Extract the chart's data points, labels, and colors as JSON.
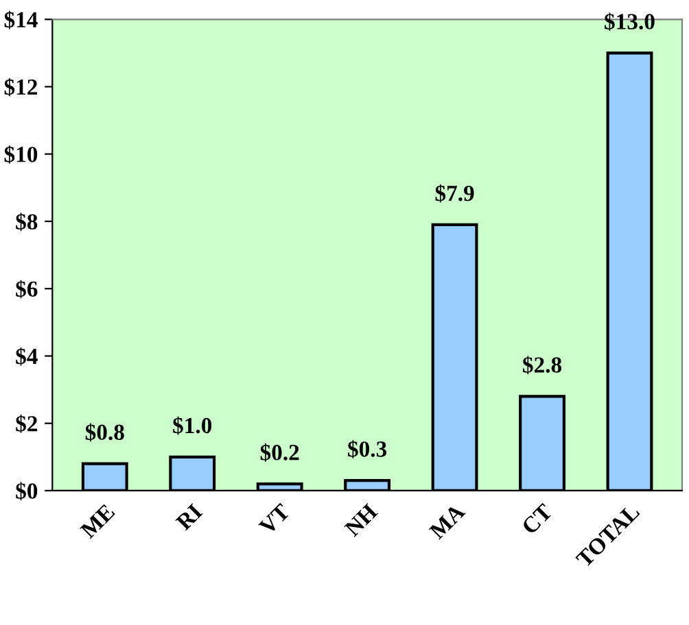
{
  "chart_data": {
    "type": "bar",
    "categories": [
      "ME",
      "RI",
      "VT",
      "NH",
      "MA",
      "CT",
      "TOTAL"
    ],
    "values": [
      0.8,
      1.0,
      0.2,
      0.3,
      7.9,
      2.8,
      13.0
    ],
    "value_labels": [
      "$0.8",
      "$1.0",
      "$0.2",
      "$0.3",
      "$7.9",
      "$2.8",
      "$13.0"
    ],
    "color": "#99ccff",
    "ylim": [
      0,
      14
    ],
    "yticks": [
      {
        "value": 0,
        "label": "$0"
      },
      {
        "value": 2,
        "label": "$2"
      },
      {
        "value": 4,
        "label": "$4"
      },
      {
        "value": 6,
        "label": "$6"
      },
      {
        "value": 8,
        "label": "$8"
      },
      {
        "value": 10,
        "label": "$10"
      },
      {
        "value": 12,
        "label": "$12"
      },
      {
        "value": 14,
        "label": "$14"
      }
    ],
    "grid": false,
    "legend": false
  }
}
